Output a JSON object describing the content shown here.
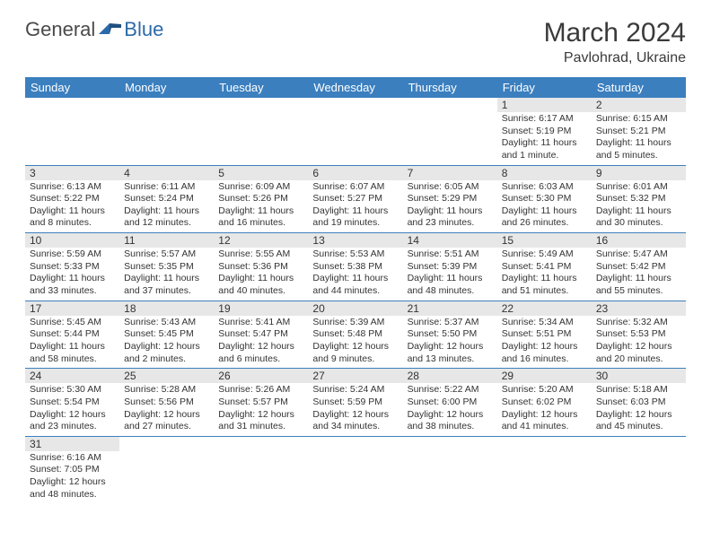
{
  "logo": {
    "part1": "General",
    "part2": "Blue"
  },
  "title": "March 2024",
  "location": "Pavlohrad, Ukraine",
  "colors": {
    "header_bg": "#3b7fbf",
    "header_text": "#ffffff",
    "daynum_bg": "#e7e7e7",
    "border": "#3b7fbf",
    "text": "#333333",
    "logo_gray": "#4a4a4a",
    "logo_blue": "#2b6aa8"
  },
  "weekdays": [
    "Sunday",
    "Monday",
    "Tuesday",
    "Wednesday",
    "Thursday",
    "Friday",
    "Saturday"
  ],
  "weeks": [
    [
      null,
      null,
      null,
      null,
      null,
      {
        "n": "1",
        "sr": "Sunrise: 6:17 AM",
        "ss": "Sunset: 5:19 PM",
        "dl": "Daylight: 11 hours and 1 minute."
      },
      {
        "n": "2",
        "sr": "Sunrise: 6:15 AM",
        "ss": "Sunset: 5:21 PM",
        "dl": "Daylight: 11 hours and 5 minutes."
      }
    ],
    [
      {
        "n": "3",
        "sr": "Sunrise: 6:13 AM",
        "ss": "Sunset: 5:22 PM",
        "dl": "Daylight: 11 hours and 8 minutes."
      },
      {
        "n": "4",
        "sr": "Sunrise: 6:11 AM",
        "ss": "Sunset: 5:24 PM",
        "dl": "Daylight: 11 hours and 12 minutes."
      },
      {
        "n": "5",
        "sr": "Sunrise: 6:09 AM",
        "ss": "Sunset: 5:26 PM",
        "dl": "Daylight: 11 hours and 16 minutes."
      },
      {
        "n": "6",
        "sr": "Sunrise: 6:07 AM",
        "ss": "Sunset: 5:27 PM",
        "dl": "Daylight: 11 hours and 19 minutes."
      },
      {
        "n": "7",
        "sr": "Sunrise: 6:05 AM",
        "ss": "Sunset: 5:29 PM",
        "dl": "Daylight: 11 hours and 23 minutes."
      },
      {
        "n": "8",
        "sr": "Sunrise: 6:03 AM",
        "ss": "Sunset: 5:30 PM",
        "dl": "Daylight: 11 hours and 26 minutes."
      },
      {
        "n": "9",
        "sr": "Sunrise: 6:01 AM",
        "ss": "Sunset: 5:32 PM",
        "dl": "Daylight: 11 hours and 30 minutes."
      }
    ],
    [
      {
        "n": "10",
        "sr": "Sunrise: 5:59 AM",
        "ss": "Sunset: 5:33 PM",
        "dl": "Daylight: 11 hours and 33 minutes."
      },
      {
        "n": "11",
        "sr": "Sunrise: 5:57 AM",
        "ss": "Sunset: 5:35 PM",
        "dl": "Daylight: 11 hours and 37 minutes."
      },
      {
        "n": "12",
        "sr": "Sunrise: 5:55 AM",
        "ss": "Sunset: 5:36 PM",
        "dl": "Daylight: 11 hours and 40 minutes."
      },
      {
        "n": "13",
        "sr": "Sunrise: 5:53 AM",
        "ss": "Sunset: 5:38 PM",
        "dl": "Daylight: 11 hours and 44 minutes."
      },
      {
        "n": "14",
        "sr": "Sunrise: 5:51 AM",
        "ss": "Sunset: 5:39 PM",
        "dl": "Daylight: 11 hours and 48 minutes."
      },
      {
        "n": "15",
        "sr": "Sunrise: 5:49 AM",
        "ss": "Sunset: 5:41 PM",
        "dl": "Daylight: 11 hours and 51 minutes."
      },
      {
        "n": "16",
        "sr": "Sunrise: 5:47 AM",
        "ss": "Sunset: 5:42 PM",
        "dl": "Daylight: 11 hours and 55 minutes."
      }
    ],
    [
      {
        "n": "17",
        "sr": "Sunrise: 5:45 AM",
        "ss": "Sunset: 5:44 PM",
        "dl": "Daylight: 11 hours and 58 minutes."
      },
      {
        "n": "18",
        "sr": "Sunrise: 5:43 AM",
        "ss": "Sunset: 5:45 PM",
        "dl": "Daylight: 12 hours and 2 minutes."
      },
      {
        "n": "19",
        "sr": "Sunrise: 5:41 AM",
        "ss": "Sunset: 5:47 PM",
        "dl": "Daylight: 12 hours and 6 minutes."
      },
      {
        "n": "20",
        "sr": "Sunrise: 5:39 AM",
        "ss": "Sunset: 5:48 PM",
        "dl": "Daylight: 12 hours and 9 minutes."
      },
      {
        "n": "21",
        "sr": "Sunrise: 5:37 AM",
        "ss": "Sunset: 5:50 PM",
        "dl": "Daylight: 12 hours and 13 minutes."
      },
      {
        "n": "22",
        "sr": "Sunrise: 5:34 AM",
        "ss": "Sunset: 5:51 PM",
        "dl": "Daylight: 12 hours and 16 minutes."
      },
      {
        "n": "23",
        "sr": "Sunrise: 5:32 AM",
        "ss": "Sunset: 5:53 PM",
        "dl": "Daylight: 12 hours and 20 minutes."
      }
    ],
    [
      {
        "n": "24",
        "sr": "Sunrise: 5:30 AM",
        "ss": "Sunset: 5:54 PM",
        "dl": "Daylight: 12 hours and 23 minutes."
      },
      {
        "n": "25",
        "sr": "Sunrise: 5:28 AM",
        "ss": "Sunset: 5:56 PM",
        "dl": "Daylight: 12 hours and 27 minutes."
      },
      {
        "n": "26",
        "sr": "Sunrise: 5:26 AM",
        "ss": "Sunset: 5:57 PM",
        "dl": "Daylight: 12 hours and 31 minutes."
      },
      {
        "n": "27",
        "sr": "Sunrise: 5:24 AM",
        "ss": "Sunset: 5:59 PM",
        "dl": "Daylight: 12 hours and 34 minutes."
      },
      {
        "n": "28",
        "sr": "Sunrise: 5:22 AM",
        "ss": "Sunset: 6:00 PM",
        "dl": "Daylight: 12 hours and 38 minutes."
      },
      {
        "n": "29",
        "sr": "Sunrise: 5:20 AM",
        "ss": "Sunset: 6:02 PM",
        "dl": "Daylight: 12 hours and 41 minutes."
      },
      {
        "n": "30",
        "sr": "Sunrise: 5:18 AM",
        "ss": "Sunset: 6:03 PM",
        "dl": "Daylight: 12 hours and 45 minutes."
      }
    ],
    [
      {
        "n": "31",
        "sr": "Sunrise: 6:16 AM",
        "ss": "Sunset: 7:05 PM",
        "dl": "Daylight: 12 hours and 48 minutes."
      },
      null,
      null,
      null,
      null,
      null,
      null
    ]
  ]
}
